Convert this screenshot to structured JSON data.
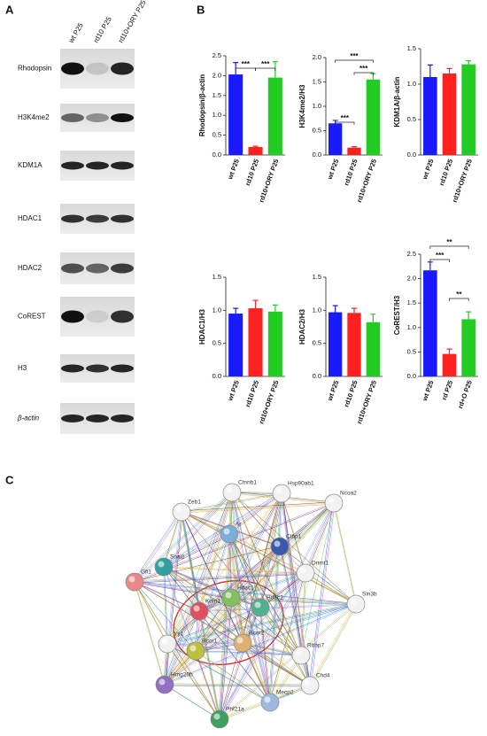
{
  "panel_labels": [
    "A",
    "B",
    "C"
  ],
  "blots": {
    "columns": [
      "wt P25",
      "rd10 P25",
      "rd10+ORY P25"
    ],
    "rows": [
      "Rhodopsin",
      "H3K4me2",
      "KDM1A",
      "HDAC1",
      "HDAC2",
      "CoREST",
      "H3",
      "β-actin"
    ]
  },
  "chart_data": [
    {
      "type": "bar",
      "ylabel": "Rhodopsin/β-actin",
      "categories": [
        "wt P25",
        "rd10 P25",
        "rd10+ORY P25"
      ],
      "values": [
        2.03,
        0.2,
        1.95
      ],
      "errors": [
        0.3,
        0.02,
        0.4
      ],
      "colors": [
        "#1a1aff",
        "#ff2020",
        "#22cc22"
      ],
      "ylim": [
        0,
        2.5
      ],
      "yticks": [
        {
          "value": 0,
          "label": "0.0"
        },
        0.5,
        {
          "value": 1,
          "label": "1.0"
        },
        1.5,
        {
          "value": 2,
          "label": "2.0"
        },
        2.5
      ],
      "annotations": [
        "***",
        "***"
      ]
    },
    {
      "type": "bar",
      "ylabel": "H3K4me2/H3",
      "categories": [
        "wt P25",
        "rd10 P25",
        "rd10+ORY P25"
      ],
      "values": [
        0.65,
        0.15,
        1.55
      ],
      "errors": [
        0.06,
        0.02,
        0.12
      ],
      "colors": [
        "#1a1aff",
        "#ff2020",
        "#22cc22"
      ],
      "ylim": [
        0,
        2
      ],
      "yticks": [
        {
          "value": 0,
          "label": "0.0"
        },
        0.5,
        {
          "value": 1,
          "label": "1.0"
        },
        1.5,
        {
          "value": 2,
          "label": "2.0"
        }
      ],
      "annotations": [
        "***",
        "***",
        "***"
      ]
    },
    {
      "type": "bar",
      "ylabel": "KDM1A/β-actin",
      "categories": [
        "wt P25",
        "rd10 P25",
        "rd10+ORY P25"
      ],
      "values": [
        1.1,
        1.15,
        1.28
      ],
      "errors": [
        0.17,
        0.07,
        0.05
      ],
      "colors": [
        "#1a1aff",
        "#ff2020",
        "#22cc22"
      ],
      "ylim": [
        0,
        1.5
      ],
      "yticks": [
        {
          "value": 0,
          "label": "0.0"
        },
        0.5,
        {
          "value": 1,
          "label": "1.0"
        },
        1.5
      ],
      "annotations": []
    },
    {
      "type": "bar",
      "ylabel": "HDAC1/H3",
      "categories": [
        "wt P25",
        "rd10 P25",
        "rd10+ORY P25"
      ],
      "values": [
        0.95,
        1.03,
        0.98
      ],
      "errors": [
        0.08,
        0.12,
        0.1
      ],
      "colors": [
        "#1a1aff",
        "#ff2020",
        "#22cc22"
      ],
      "ylim": [
        0,
        1.5
      ],
      "yticks": [
        {
          "value": 0,
          "label": "0.0"
        },
        0.5,
        {
          "value": 1,
          "label": "1.0"
        },
        1.5
      ],
      "annotations": []
    },
    {
      "type": "bar",
      "ylabel": "HDAC2/H3",
      "categories": [
        "wt P25",
        "rd10 P25",
        "rd10+ORY P25"
      ],
      "values": [
        0.97,
        0.96,
        0.82
      ],
      "errors": [
        0.1,
        0.07,
        0.12
      ],
      "colors": [
        "#1a1aff",
        "#ff2020",
        "#22cc22"
      ],
      "ylim": [
        0,
        1.5
      ],
      "yticks": [
        {
          "value": 0,
          "label": "0.0"
        },
        0.5,
        {
          "value": 1,
          "label": "1.0"
        },
        1.5
      ],
      "annotations": []
    },
    {
      "type": "bar",
      "ylabel": "CoREST/H3",
      "categories": [
        "wt P25",
        "rd P25",
        "rd+O P25"
      ],
      "values": [
        2.17,
        0.46,
        1.17
      ],
      "errors": [
        0.17,
        0.1,
        0.15
      ],
      "colors": [
        "#1a1aff",
        "#ff2020",
        "#22cc22"
      ],
      "ylim": [
        0,
        2.5
      ],
      "yticks": [
        {
          "value": 0,
          "label": "0.0"
        },
        0.5,
        {
          "value": 1,
          "label": "1.0"
        },
        1.5,
        {
          "value": 2,
          "label": "2.0"
        },
        2.5
      ],
      "annotations": [
        "**",
        "***",
        "**"
      ]
    }
  ],
  "network": {
    "nodes": [
      "Ctnnb1",
      "Hsp90ab1",
      "Ncoa2",
      "Zeb1",
      "Ar",
      "Ctbp1",
      "Dnmt1",
      "Snai1",
      "Gfi1",
      "Hdac1",
      "Hdac2",
      "Kdm1",
      "Rcor1",
      "Rcor2",
      "Sin3b",
      "Yy1",
      "Rbbp7",
      "Hmg20b",
      "Chd4",
      "Mecp2",
      "Phf21a"
    ]
  }
}
